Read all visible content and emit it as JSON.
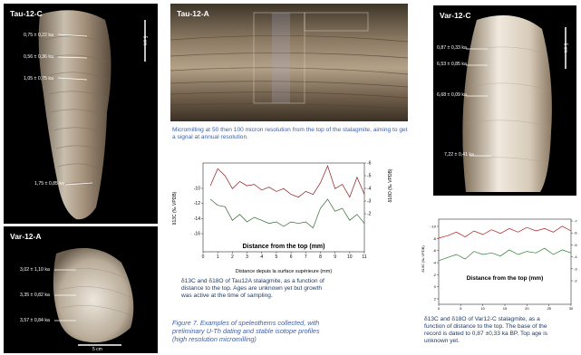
{
  "panels": {
    "tau12c": {
      "title": "Tau-12-C",
      "scale": "5 cm",
      "ages": [
        "0,75 ± 0,22 ka",
        "0,56 ± 0,36 ka",
        "1,05 ± 0,75 ka",
        "1,75 ± 0,85 ka"
      ]
    },
    "var12a": {
      "title": "Var-12-A",
      "scale": "5 cm",
      "ages": [
        "3,02 ± 1,10 ka",
        "3,35 ± 0,82 ka",
        "3,57 ± 0,84 ka"
      ]
    },
    "tau12a": {
      "title": "Tau-12-A"
    },
    "var12c": {
      "title": "Var-12-C",
      "scale": "5 cm",
      "ages": [
        "0,87 ± 0,33 ka",
        "6,53 ± 0,85 ka",
        "6,68 ± 0,09 ka",
        "7,22 ± 0,41 ka"
      ]
    }
  },
  "captions": {
    "micromilling": "Micromilling at 50 then 100 micron resolution from the top of the stalagmite, aiming to get a signal at annual resolution.",
    "tau_profile_1": "δ13C and δ18O of Tau12A stalagmite, as a function of",
    "tau_profile_2": "distance to the top. Ages are unknown yet but growth",
    "tau_profile_3": "was active at the time of sampling.",
    "figure_1": "Figure 7. Examples of speleothems collected, with",
    "figure_2": "preliminary U-Th dating and stable isotope profiles",
    "figure_3": "(high resolution micromilling)",
    "var_profile_1": "δ13C and δ18O of Var12-C stalagmite, as a",
    "var_profile_2": "function of distance to the top. The base of the",
    "var_profile_3": "record is dated to 0,87 ±0,33 ka BP. Top age is",
    "var_profile_4": "unknown yet."
  },
  "chart_data": [
    {
      "type": "line",
      "title": "Distance from the top (mm)",
      "xlabel": "Distance depuis la surface supérieure (mm)",
      "ylabel_left": "δ13C (‰ VPDB)",
      "ylabel_right": "δ18O (‰ VPDB)",
      "xlim": [
        0,
        11
      ],
      "xticks": [
        "0",
        "1",
        "2",
        "3",
        "4",
        "5",
        "6",
        "7",
        "8",
        "9",
        "10",
        "11"
      ],
      "y_left_ticks": [
        "-10",
        "-12",
        "-14",
        "-16"
      ],
      "y_right_ticks": [
        "-6",
        "-5",
        "-4",
        "-3",
        "-2"
      ],
      "series": [
        {
          "color": "#8b1a1a",
          "x": [
            0.5,
            1.0,
            1.5,
            2.0,
            2.5,
            3.0,
            3.5,
            4.0,
            4.5,
            5.0,
            5.5,
            6.0,
            6.5,
            7.0,
            7.5,
            8.0,
            8.5,
            9.0,
            9.5,
            10.0,
            10.5,
            11.0
          ],
          "values": [
            -4.6,
            -3.4,
            -3.9,
            -4.8,
            -4.3,
            -4.6,
            -4.5,
            -4.9,
            -4.7,
            -5.0,
            -4.8,
            -5.2,
            -5.4,
            -5.0,
            -5.2,
            -4.4,
            -3.2,
            -4.8,
            -4.5,
            -5.4,
            -4.0,
            -5.2
          ]
        },
        {
          "color": "#2f6b2f",
          "x": [
            0.5,
            1.0,
            1.5,
            2.0,
            2.5,
            3.0,
            3.5,
            4.0,
            4.5,
            5.0,
            5.5,
            6.0,
            6.5,
            7.0,
            7.5,
            8.0,
            8.5,
            9.0,
            9.5,
            10.0,
            10.5,
            11.0
          ],
          "values": [
            -12.6,
            -13.0,
            -13.1,
            -14.0,
            -13.6,
            -14.1,
            -13.8,
            -14.0,
            -14.2,
            -14.1,
            -14.4,
            -14.1,
            -14.2,
            -14.1,
            -14.5,
            -13.2,
            -12.6,
            -13.4,
            -13.2,
            -14.0,
            -13.6,
            -14.2
          ]
        }
      ]
    },
    {
      "type": "line",
      "title": "Distance from the top (mm)",
      "xlim": [
        0,
        30
      ],
      "xticks": [
        "0",
        "5",
        "10",
        "15",
        "20",
        "25",
        "30"
      ],
      "y_left_ticks": [
        "-10",
        "-8",
        "-6",
        "-4",
        "-2",
        "0",
        "2"
      ],
      "ylabel_left": "δ13C (‰ VPDB)",
      "y_right_ticks": [
        "-7",
        "-6",
        "-5",
        "-4",
        "-3",
        "-2"
      ],
      "series": [
        {
          "color": "#b01e1e",
          "x": [
            0,
            2,
            4,
            6,
            8,
            10,
            12,
            14,
            16,
            18,
            20,
            22,
            24,
            26,
            28,
            30
          ],
          "values": [
            -8.8,
            -8.6,
            -8.3,
            -8.7,
            -8.2,
            -8.5,
            -8.1,
            -8.4,
            -8.0,
            -8.3,
            -7.9,
            -8.2,
            -8.0,
            -8.3,
            -7.8,
            -8.2
          ]
        },
        {
          "color": "#2f7a2f",
          "x": [
            0,
            2,
            4,
            6,
            8,
            10,
            12,
            14,
            16,
            18,
            20,
            22,
            24,
            26,
            28,
            30
          ],
          "values": [
            -5.4,
            -5.2,
            -5.0,
            -5.3,
            -4.8,
            -5.0,
            -4.9,
            -5.1,
            -4.7,
            -5.0,
            -4.8,
            -4.9,
            -4.6,
            -5.0,
            -4.7,
            -4.9
          ]
        }
      ]
    }
  ]
}
